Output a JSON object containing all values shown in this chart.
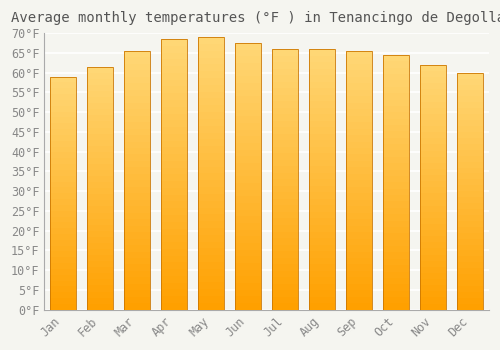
{
  "title": "Average monthly temperatures (°F ) in Tenancingo de Degollado",
  "months": [
    "Jan",
    "Feb",
    "Mar",
    "Apr",
    "May",
    "Jun",
    "Jul",
    "Aug",
    "Sep",
    "Oct",
    "Nov",
    "Dec"
  ],
  "values": [
    59.0,
    61.5,
    65.5,
    68.5,
    69.0,
    67.5,
    66.0,
    66.0,
    65.5,
    64.5,
    62.0,
    60.0
  ],
  "ylim": [
    0,
    70
  ],
  "yticks": [
    0,
    5,
    10,
    15,
    20,
    25,
    30,
    35,
    40,
    45,
    50,
    55,
    60,
    65,
    70
  ],
  "ytick_labels": [
    "0°F",
    "5°F",
    "10°F",
    "15°F",
    "20°F",
    "25°F",
    "30°F",
    "35°F",
    "40°F",
    "45°F",
    "50°F",
    "55°F",
    "60°F",
    "65°F",
    "70°F"
  ],
  "background_color": "#f5f5f0",
  "grid_color": "#ffffff",
  "title_fontsize": 10,
  "tick_fontsize": 8.5,
  "bar_edge_color": "#CC7700",
  "bar_color_bottom": "#FFA000",
  "bar_color_top": "#FFD878",
  "bar_width": 0.7,
  "n_grad": 40
}
